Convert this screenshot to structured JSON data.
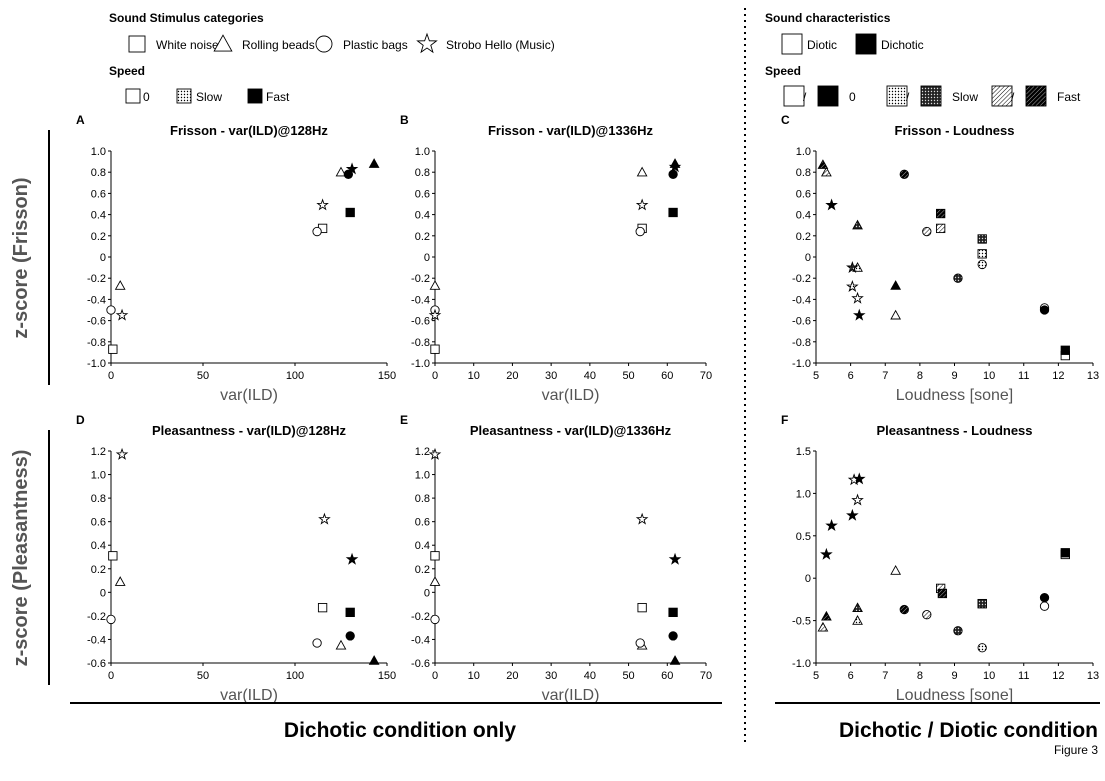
{
  "legend": {
    "left": {
      "categories_title": "Sound Stimulus categories",
      "categories": [
        {
          "label": "White noise",
          "icon": "square"
        },
        {
          "label": "Rolling beads",
          "icon": "triangle"
        },
        {
          "label": "Plastic bags",
          "icon": "circle"
        },
        {
          "label": "Strobo Hello (Music)",
          "icon": "star"
        }
      ],
      "speed_title": "Speed",
      "speeds": [
        {
          "label": "0",
          "fill": "open"
        },
        {
          "label": "Slow",
          "fill": "dotted"
        },
        {
          "label": "Fast",
          "fill": "solid"
        }
      ]
    },
    "right": {
      "char_title": "Sound characteristics",
      "chars": [
        {
          "label": "Diotic",
          "fill": "open"
        },
        {
          "label": "Dichotic",
          "fill": "solid"
        }
      ],
      "speed_title": "Speed",
      "speeds": [
        {
          "label": "0",
          "pair": [
            "open",
            "solid"
          ]
        },
        {
          "label": "Slow",
          "pair": [
            "dotted",
            "dotted-dark"
          ]
        },
        {
          "label": "Fast",
          "pair": [
            "hatch",
            "hatch-dark"
          ]
        }
      ],
      "slash": "/"
    }
  },
  "row_labels": {
    "top": "z-score (Frisson)",
    "bottom": "z-score (Pleasantness)"
  },
  "bottom_labels": {
    "left": "Dichotic condition only",
    "right": "Dichotic / Diotic condition"
  },
  "figure_label": "Figure 3",
  "chart_data": [
    {
      "panel": "A",
      "type": "scatter",
      "title": "Frisson - var(ILD)@128Hz",
      "xlabel": "var(ILD)",
      "ylabel": "",
      "xlim": [
        0,
        150
      ],
      "ylim": [
        -1.0,
        1.0
      ],
      "xticks": [
        "0",
        "50",
        "100",
        "150"
      ],
      "yticks": [
        "-1.0",
        "-0.8",
        "-0.6",
        "-0.4",
        "-0.2",
        "0",
        "0.2",
        "0.4",
        "0.6",
        "0.8",
        "1.0"
      ],
      "points": [
        {
          "x": 1,
          "y": -0.87,
          "m": "square",
          "f": "open"
        },
        {
          "x": 115,
          "y": 0.27,
          "m": "square",
          "f": "open"
        },
        {
          "x": 130,
          "y": 0.42,
          "m": "square",
          "f": "solid"
        },
        {
          "x": 5,
          "y": -0.27,
          "m": "triangle",
          "f": "open"
        },
        {
          "x": 125,
          "y": 0.8,
          "m": "triangle",
          "f": "open"
        },
        {
          "x": 143,
          "y": 0.88,
          "m": "triangle",
          "f": "solid"
        },
        {
          "x": 0,
          "y": -0.5,
          "m": "circle",
          "f": "open"
        },
        {
          "x": 112,
          "y": 0.24,
          "m": "circle",
          "f": "open"
        },
        {
          "x": 129,
          "y": 0.78,
          "m": "circle",
          "f": "solid"
        },
        {
          "x": 6,
          "y": -0.55,
          "m": "star",
          "f": "open"
        },
        {
          "x": 115,
          "y": 0.49,
          "m": "star",
          "f": "open"
        },
        {
          "x": 131,
          "y": 0.83,
          "m": "star",
          "f": "solid"
        }
      ]
    },
    {
      "panel": "B",
      "type": "scatter",
      "title": "Frisson - var(ILD)@1336Hz",
      "xlabel": "var(ILD)",
      "ylabel": "",
      "xlim": [
        0,
        70
      ],
      "ylim": [
        -1.0,
        1.0
      ],
      "xticks": [
        "0",
        "10",
        "20",
        "30",
        "40",
        "50",
        "60",
        "70"
      ],
      "yticks": [
        "-1.0",
        "-0.8",
        "-0.6",
        "-0.4",
        "-0.2",
        "0",
        "0.2",
        "0.4",
        "0.6",
        "0.8",
        "1.0"
      ],
      "points": [
        {
          "x": 0,
          "y": -0.87,
          "m": "square",
          "f": "open"
        },
        {
          "x": 53.5,
          "y": 0.27,
          "m": "square",
          "f": "open"
        },
        {
          "x": 61.5,
          "y": 0.42,
          "m": "square",
          "f": "solid"
        },
        {
          "x": 0,
          "y": -0.27,
          "m": "triangle",
          "f": "open"
        },
        {
          "x": 53.5,
          "y": 0.8,
          "m": "triangle",
          "f": "open"
        },
        {
          "x": 62,
          "y": 0.88,
          "m": "triangle",
          "f": "solid"
        },
        {
          "x": 0,
          "y": -0.5,
          "m": "circle",
          "f": "open"
        },
        {
          "x": 53,
          "y": 0.24,
          "m": "circle",
          "f": "open"
        },
        {
          "x": 61.5,
          "y": 0.78,
          "m": "circle",
          "f": "solid"
        },
        {
          "x": 0,
          "y": -0.55,
          "m": "star",
          "f": "open"
        },
        {
          "x": 53.5,
          "y": 0.49,
          "m": "star",
          "f": "open"
        },
        {
          "x": 62,
          "y": 0.85,
          "m": "star",
          "f": "solid"
        }
      ]
    },
    {
      "panel": "C",
      "type": "scatter",
      "title": "Frisson - Loudness",
      "xlabel": "Loudness [sone]",
      "ylabel": "",
      "xlim": [
        5,
        13
      ],
      "ylim": [
        -1.0,
        1.0
      ],
      "xticks": [
        "5",
        "6",
        "7",
        "8",
        "9",
        "10",
        "11",
        "12",
        "13"
      ],
      "yticks": [
        "-1.0",
        "-0.8",
        "-0.6",
        "-0.4",
        "-0.2",
        "0",
        "0.2",
        "0.4",
        "0.6",
        "0.8",
        "1.0"
      ],
      "points": [
        {
          "x": 12.2,
          "y": -0.93,
          "m": "square",
          "f": "open"
        },
        {
          "x": 12.2,
          "y": -0.88,
          "m": "square",
          "f": "solid"
        },
        {
          "x": 9.8,
          "y": 0.03,
          "m": "square",
          "f": "dotted"
        },
        {
          "x": 9.8,
          "y": 0.17,
          "m": "square",
          "f": "dotted-dark"
        },
        {
          "x": 8.6,
          "y": 0.27,
          "m": "square",
          "f": "hatch"
        },
        {
          "x": 8.6,
          "y": 0.41,
          "m": "square",
          "f": "hatch-dark"
        },
        {
          "x": 7.3,
          "y": -0.55,
          "m": "triangle",
          "f": "open"
        },
        {
          "x": 7.3,
          "y": -0.27,
          "m": "triangle",
          "f": "solid"
        },
        {
          "x": 6.2,
          "y": -0.1,
          "m": "triangle",
          "f": "dotted"
        },
        {
          "x": 6.2,
          "y": 0.3,
          "m": "triangle",
          "f": "dotted-dark"
        },
        {
          "x": 5.3,
          "y": 0.8,
          "m": "triangle",
          "f": "hatch"
        },
        {
          "x": 5.2,
          "y": 0.87,
          "m": "triangle",
          "f": "hatch-dark"
        },
        {
          "x": 11.6,
          "y": -0.48,
          "m": "circle",
          "f": "open"
        },
        {
          "x": 11.6,
          "y": -0.5,
          "m": "circle",
          "f": "solid"
        },
        {
          "x": 9.8,
          "y": -0.07,
          "m": "circle",
          "f": "dotted"
        },
        {
          "x": 9.1,
          "y": -0.2,
          "m": "circle",
          "f": "dotted-dark"
        },
        {
          "x": 8.2,
          "y": 0.24,
          "m": "circle",
          "f": "hatch"
        },
        {
          "x": 7.55,
          "y": 0.78,
          "m": "circle",
          "f": "hatch-dark"
        },
        {
          "x": 6.2,
          "y": -0.39,
          "m": "star",
          "f": "open"
        },
        {
          "x": 6.25,
          "y": -0.55,
          "m": "star",
          "f": "solid"
        },
        {
          "x": 6.05,
          "y": -0.28,
          "m": "star",
          "f": "dotted"
        },
        {
          "x": 6.05,
          "y": -0.1,
          "m": "star",
          "f": "dotted-dark"
        },
        {
          "x": 5.45,
          "y": 0.49,
          "m": "star",
          "f": "solid"
        }
      ]
    },
    {
      "panel": "D",
      "type": "scatter",
      "title": "Pleasantness - var(ILD)@128Hz",
      "xlabel": "var(ILD)",
      "ylabel": "",
      "xlim": [
        0,
        150
      ],
      "ylim": [
        -0.6,
        1.2
      ],
      "xticks": [
        "0",
        "50",
        "100",
        "150"
      ],
      "yticks": [
        "-0.6",
        "-0.4",
        "-0.2",
        "0",
        "0.2",
        "0.4",
        "0.6",
        "0.8",
        "1.0",
        "1.2"
      ],
      "points": [
        {
          "x": 1,
          "y": 0.31,
          "m": "square",
          "f": "open"
        },
        {
          "x": 115,
          "y": -0.13,
          "m": "square",
          "f": "open"
        },
        {
          "x": 130,
          "y": -0.17,
          "m": "square",
          "f": "solid"
        },
        {
          "x": 5,
          "y": 0.09,
          "m": "triangle",
          "f": "open"
        },
        {
          "x": 125,
          "y": -0.45,
          "m": "triangle",
          "f": "open"
        },
        {
          "x": 143,
          "y": -0.58,
          "m": "triangle",
          "f": "solid"
        },
        {
          "x": 0,
          "y": -0.23,
          "m": "circle",
          "f": "open"
        },
        {
          "x": 112,
          "y": -0.43,
          "m": "circle",
          "f": "open"
        },
        {
          "x": 130,
          "y": -0.37,
          "m": "circle",
          "f": "solid"
        },
        {
          "x": 6,
          "y": 1.17,
          "m": "star",
          "f": "open"
        },
        {
          "x": 116,
          "y": 0.62,
          "m": "star",
          "f": "open"
        },
        {
          "x": 131,
          "y": 0.28,
          "m": "star",
          "f": "solid"
        }
      ]
    },
    {
      "panel": "E",
      "type": "scatter",
      "title": "Pleasantness - var(ILD)@1336Hz",
      "xlabel": "var(ILD)",
      "ylabel": "",
      "xlim": [
        0,
        70
      ],
      "ylim": [
        -0.6,
        1.2
      ],
      "xticks": [
        "0",
        "10",
        "20",
        "30",
        "40",
        "50",
        "60",
        "70"
      ],
      "yticks": [
        "-0.6",
        "-0.4",
        "-0.2",
        "0",
        "0.2",
        "0.4",
        "0.6",
        "0.8",
        "1.0",
        "1.2"
      ],
      "points": [
        {
          "x": 0,
          "y": 0.31,
          "m": "square",
          "f": "open"
        },
        {
          "x": 53.5,
          "y": -0.13,
          "m": "square",
          "f": "open"
        },
        {
          "x": 61.5,
          "y": -0.17,
          "m": "square",
          "f": "solid"
        },
        {
          "x": 0,
          "y": 0.09,
          "m": "triangle",
          "f": "open"
        },
        {
          "x": 53.5,
          "y": -0.45,
          "m": "triangle",
          "f": "open"
        },
        {
          "x": 62,
          "y": -0.58,
          "m": "triangle",
          "f": "solid"
        },
        {
          "x": 0,
          "y": -0.23,
          "m": "circle",
          "f": "open"
        },
        {
          "x": 53,
          "y": -0.43,
          "m": "circle",
          "f": "open"
        },
        {
          "x": 61.5,
          "y": -0.37,
          "m": "circle",
          "f": "solid"
        },
        {
          "x": 0,
          "y": 1.17,
          "m": "star",
          "f": "open"
        },
        {
          "x": 53.5,
          "y": 0.62,
          "m": "star",
          "f": "open"
        },
        {
          "x": 62,
          "y": 0.28,
          "m": "star",
          "f": "solid"
        }
      ]
    },
    {
      "panel": "F",
      "type": "scatter",
      "title": "Pleasantness - Loudness",
      "xlabel": "Loudness [sone]",
      "ylabel": "",
      "xlim": [
        5,
        13
      ],
      "ylim": [
        -1.0,
        1.5
      ],
      "xticks": [
        "5",
        "6",
        "7",
        "8",
        "9",
        "10",
        "11",
        "12",
        "13"
      ],
      "yticks": [
        "-1.0",
        "-0.5",
        "0",
        "0.5",
        "1.0",
        "1.5"
      ],
      "points": [
        {
          "x": 12.2,
          "y": 0.28,
          "m": "square",
          "f": "open"
        },
        {
          "x": 12.2,
          "y": 0.3,
          "m": "square",
          "f": "solid"
        },
        {
          "x": 9.8,
          "y": -0.3,
          "m": "square",
          "f": "dotted"
        },
        {
          "x": 9.8,
          "y": -0.3,
          "m": "square",
          "f": "dotted-dark"
        },
        {
          "x": 8.6,
          "y": -0.12,
          "m": "square",
          "f": "hatch"
        },
        {
          "x": 8.65,
          "y": -0.18,
          "m": "square",
          "f": "hatch-dark"
        },
        {
          "x": 7.3,
          "y": 0.09,
          "m": "triangle",
          "f": "open"
        },
        {
          "x": 6.2,
          "y": -0.5,
          "m": "triangle",
          "f": "dotted"
        },
        {
          "x": 6.2,
          "y": -0.35,
          "m": "triangle",
          "f": "dotted-dark"
        },
        {
          "x": 5.2,
          "y": -0.58,
          "m": "triangle",
          "f": "hatch"
        },
        {
          "x": 5.3,
          "y": -0.45,
          "m": "triangle",
          "f": "hatch-dark"
        },
        {
          "x": 11.6,
          "y": -0.33,
          "m": "circle",
          "f": "open"
        },
        {
          "x": 11.6,
          "y": -0.23,
          "m": "circle",
          "f": "solid"
        },
        {
          "x": 9.8,
          "y": -0.82,
          "m": "circle",
          "f": "dotted"
        },
        {
          "x": 9.1,
          "y": -0.62,
          "m": "circle",
          "f": "dotted-dark"
        },
        {
          "x": 8.2,
          "y": -0.43,
          "m": "circle",
          "f": "hatch"
        },
        {
          "x": 7.55,
          "y": -0.37,
          "m": "circle",
          "f": "hatch-dark"
        },
        {
          "x": 6.2,
          "y": 0.92,
          "m": "star",
          "f": "open"
        },
        {
          "x": 6.1,
          "y": 1.16,
          "m": "star",
          "f": "open"
        },
        {
          "x": 6.25,
          "y": 1.17,
          "m": "star",
          "f": "solid"
        },
        {
          "x": 6.05,
          "y": 0.74,
          "m": "star",
          "f": "solid"
        },
        {
          "x": 5.3,
          "y": 0.28,
          "m": "star",
          "f": "solid"
        },
        {
          "x": 5.45,
          "y": 0.62,
          "m": "star",
          "f": "solid"
        }
      ]
    }
  ]
}
